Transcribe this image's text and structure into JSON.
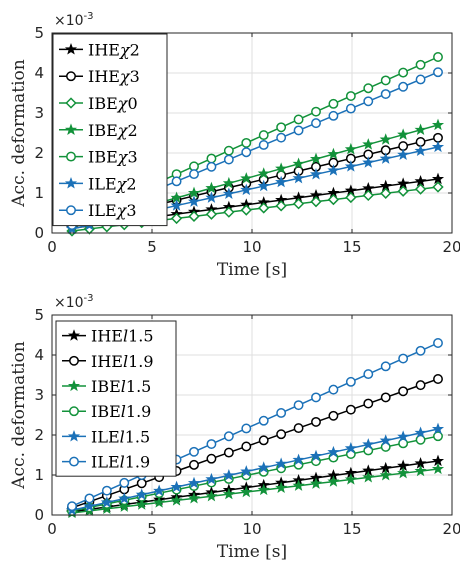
{
  "colors": {
    "black": "#000000",
    "green": "#12923a",
    "blue": "#1b71b8"
  },
  "chart_data": [
    {
      "type": "line",
      "title": "",
      "xlabel": "Time [s]",
      "ylabel": "Acc. deformation",
      "xlim": [
        0,
        20
      ],
      "ylim": [
        0,
        5
      ],
      "xticks": [
        0,
        5,
        10,
        15,
        20
      ],
      "yticks": [
        0,
        1,
        2,
        3,
        4,
        5
      ],
      "y_exponent_base": "×10",
      "y_exponent_power": "-3",
      "grid": true,
      "legend_position": "top-left",
      "series": [
        {
          "name": "IHE",
          "symbol": "χ",
          "suffix": "2",
          "color": "black",
          "marker": "star",
          "x_start": 1,
          "x_end": 19.3,
          "y_start": 0.12,
          "y_end": 1.35
        },
        {
          "name": "IHE",
          "symbol": "χ",
          "suffix": "3",
          "color": "black",
          "marker": "circle",
          "x_start": 1,
          "x_end": 19.3,
          "y_start": 0.2,
          "y_end": 2.38
        },
        {
          "name": "IBE",
          "symbol": "χ",
          "suffix": "0",
          "color": "green",
          "marker": "diamond",
          "x_start": 1,
          "x_end": 19.3,
          "y_start": 0.05,
          "y_end": 1.15
        },
        {
          "name": "IBE",
          "symbol": "χ",
          "suffix": "2",
          "color": "green",
          "marker": "star",
          "x_start": 1,
          "x_end": 19.3,
          "y_start": 0.15,
          "y_end": 2.7
        },
        {
          "name": "IBE",
          "symbol": "χ",
          "suffix": "3",
          "color": "green",
          "marker": "circle",
          "x_start": 1,
          "x_end": 19.3,
          "y_start": 0.3,
          "y_end": 4.4
        },
        {
          "name": "ILE",
          "symbol": "χ",
          "suffix": "2",
          "color": "blue",
          "marker": "star",
          "x_start": 1,
          "x_end": 19.3,
          "y_start": 0.1,
          "y_end": 2.15
        },
        {
          "name": "ILE",
          "symbol": "χ",
          "suffix": "3",
          "color": "blue",
          "marker": "circle",
          "x_start": 1,
          "x_end": 19.3,
          "y_start": 0.2,
          "y_end": 4.02
        }
      ]
    },
    {
      "type": "line",
      "title": "",
      "xlabel": "Time [s]",
      "ylabel": "Acc. deformation",
      "xlim": [
        0,
        20
      ],
      "ylim": [
        0,
        5
      ],
      "xticks": [
        0,
        5,
        10,
        15,
        20
      ],
      "yticks": [
        0,
        1,
        2,
        3,
        4,
        5
      ],
      "y_exponent_base": "×10",
      "y_exponent_power": "-3",
      "grid": true,
      "legend_position": "top-left",
      "series": [
        {
          "name": "IHE",
          "symbol": "l",
          "suffix": "1.5",
          "color": "black",
          "marker": "star",
          "x_start": 1,
          "x_end": 19.3,
          "y_start": 0.08,
          "y_end": 1.35
        },
        {
          "name": "IHE",
          "symbol": "l",
          "suffix": "1.9",
          "color": "black",
          "marker": "circle",
          "x_start": 1,
          "x_end": 19.3,
          "y_start": 0.18,
          "y_end": 3.4
        },
        {
          "name": "IBE",
          "symbol": "l",
          "suffix": "1.5",
          "color": "green",
          "marker": "star",
          "x_start": 1,
          "x_end": 19.3,
          "y_start": 0.05,
          "y_end": 1.15
        },
        {
          "name": "IBE",
          "symbol": "l",
          "suffix": "1.9",
          "color": "green",
          "marker": "circle",
          "x_start": 1,
          "x_end": 19.3,
          "y_start": 0.1,
          "y_end": 1.97
        },
        {
          "name": "ILE",
          "symbol": "l",
          "suffix": "1.5",
          "color": "blue",
          "marker": "star",
          "x_start": 1,
          "x_end": 19.3,
          "y_start": 0.12,
          "y_end": 2.15
        },
        {
          "name": "ILE",
          "symbol": "l",
          "suffix": "1.9",
          "color": "blue",
          "marker": "circle",
          "x_start": 1,
          "x_end": 19.3,
          "y_start": 0.22,
          "y_end": 4.3
        }
      ]
    }
  ]
}
